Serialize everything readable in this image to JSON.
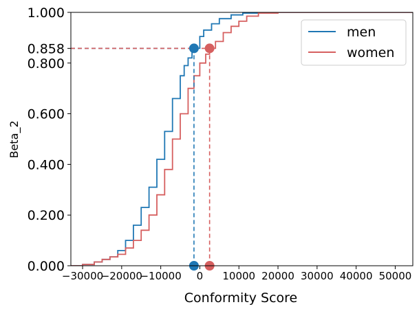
{
  "chart_data": {
    "type": "line",
    "xlabel": "Conformity Score",
    "ylabel": "Beta_2",
    "xlim": [
      -33000,
      54500
    ],
    "ylim": [
      0.0,
      1.0
    ],
    "x_ticks": [
      -30000,
      -20000,
      -10000,
      0,
      10000,
      20000,
      30000,
      40000,
      50000
    ],
    "x_tick_labels": [
      "−30000",
      "−20000",
      "−10000",
      "0",
      "10000",
      "20000",
      "30000",
      "40000",
      "50000"
    ],
    "y_ticks": [
      0.0,
      0.2,
      0.4,
      0.6,
      0.8,
      0.858,
      1.0
    ],
    "y_tick_labels": [
      "0.000",
      "0.200",
      "0.400",
      "0.600",
      "0.800",
      "0.858",
      "1.000"
    ],
    "grid": false,
    "legend_position": "upper-right",
    "series": [
      {
        "name": "men",
        "color": "#1f77b4",
        "x": [
          -33000,
          -30000,
          -27000,
          -25000,
          -23000,
          -21000,
          -19000,
          -17000,
          -15000,
          -13000,
          -11000,
          -9000,
          -7000,
          -5000,
          -4000,
          -3000,
          -2000,
          -1500,
          0,
          1000,
          3000,
          5000,
          8000,
          11000,
          15000,
          20000,
          30000,
          54500
        ],
        "y": [
          0.0,
          0.005,
          0.015,
          0.025,
          0.035,
          0.06,
          0.1,
          0.16,
          0.23,
          0.31,
          0.42,
          0.53,
          0.66,
          0.75,
          0.79,
          0.82,
          0.845,
          0.858,
          0.905,
          0.93,
          0.955,
          0.975,
          0.99,
          0.997,
          1.0,
          1.0,
          1.0,
          1.0
        ]
      },
      {
        "name": "women",
        "color": "#d65f5f",
        "x": [
          -33000,
          -30000,
          -27000,
          -25000,
          -23000,
          -21000,
          -19000,
          -17000,
          -15000,
          -13000,
          -11000,
          -9000,
          -7000,
          -5000,
          -3000,
          -1500,
          0,
          1500,
          2500,
          4000,
          6000,
          8000,
          10000,
          12000,
          15000,
          20000,
          54500
        ],
        "y": [
          0.0,
          0.005,
          0.015,
          0.025,
          0.035,
          0.045,
          0.07,
          0.1,
          0.14,
          0.2,
          0.28,
          0.38,
          0.5,
          0.6,
          0.7,
          0.75,
          0.8,
          0.835,
          0.858,
          0.885,
          0.92,
          0.945,
          0.965,
          0.985,
          0.997,
          1.0,
          1.0
        ]
      }
    ],
    "markers": [
      {
        "series": "men",
        "x": -1500,
        "y": 0.858
      },
      {
        "series": "women",
        "x": 2500,
        "y": 0.858
      }
    ]
  }
}
